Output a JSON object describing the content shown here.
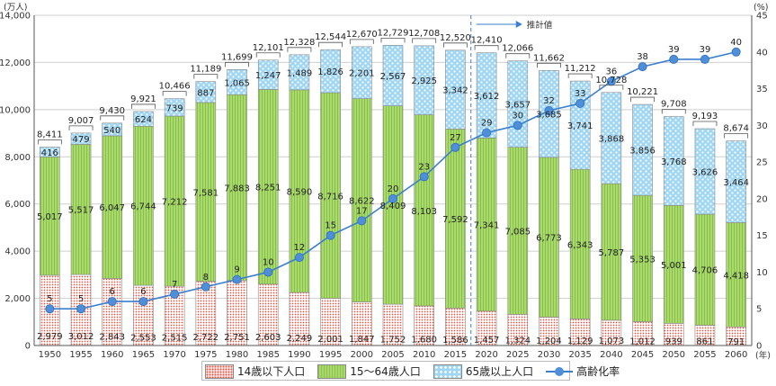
{
  "chart_data": {
    "type": "bar",
    "stacked": true,
    "left_unit": "(万人)",
    "right_unit": "(%)",
    "x_unit": "(年)",
    "projection_label": "推計値",
    "categories": [
      "1950",
      "1955",
      "1960",
      "1965",
      "1970",
      "1975",
      "1980",
      "1985",
      "1990",
      "1995",
      "2000",
      "2005",
      "2010",
      "2015",
      "2020",
      "2025",
      "2030",
      "2035",
      "2040",
      "2045",
      "2050",
      "2055",
      "2060"
    ],
    "left_ticks": [
      "0",
      "2,000",
      "4,000",
      "6,000",
      "8,000",
      "10,000",
      "12,000",
      "14,000"
    ],
    "right_ticks": [
      "0",
      "5",
      "10",
      "15",
      "20",
      "25",
      "30",
      "35",
      "40",
      "45"
    ],
    "ylim": [
      0,
      14000
    ],
    "y2lim": [
      0,
      45
    ],
    "series": [
      {
        "name": "14歳以下人口",
        "values": [
          2979,
          3012,
          2843,
          2553,
          2515,
          2722,
          2751,
          2603,
          2249,
          2001,
          1847,
          1752,
          1680,
          1586,
          1457,
          1324,
          1204,
          1129,
          1073,
          1012,
          939,
          861,
          791
        ],
        "labels": [
          "2,979",
          "3,012",
          "2,843",
          "2,553",
          "2,515",
          "2,722",
          "2,751",
          "2,603",
          "2,249",
          "2,001",
          "1,847",
          "1,752",
          "1,680",
          "1,586",
          "1,457",
          "1,324",
          "1,204",
          "1,129",
          "1,073",
          "1,012",
          "939",
          "861",
          "791"
        ]
      },
      {
        "name": "15～64歳人口",
        "values": [
          5017,
          5517,
          6047,
          6744,
          7212,
          7581,
          7883,
          8251,
          8590,
          8716,
          8622,
          8409,
          8103,
          7592,
          7341,
          7085,
          6773,
          6343,
          5787,
          5353,
          5001,
          4706,
          4418
        ],
        "labels": [
          "5,017",
          "5,517",
          "6,047",
          "6,744",
          "7,212",
          "7,581",
          "7,883",
          "8,251",
          "8,590",
          "8,716",
          "8,622",
          "8,409",
          "8,103",
          "7,592",
          "7,341",
          "7,085",
          "6,773",
          "6,343",
          "5,787",
          "5,353",
          "5,001",
          "4,706",
          "4,418"
        ]
      },
      {
        "name": "65歳以上人口",
        "values": [
          416,
          479,
          540,
          624,
          739,
          887,
          1065,
          1247,
          1489,
          1826,
          2201,
          2567,
          2925,
          3342,
          3612,
          3657,
          3685,
          3741,
          3868,
          3856,
          3768,
          3626,
          3464
        ],
        "labels": [
          "416",
          "479",
          "540",
          "624",
          "739",
          "887",
          "1,065",
          "1,247",
          "1,489",
          "1,826",
          "2,201",
          "2,567",
          "2,925",
          "3,342",
          "3,612",
          "3,657",
          "3,685",
          "3,741",
          "3,868",
          "3,856",
          "3,768",
          "3,626",
          "3,464"
        ]
      }
    ],
    "totals": [
      "8,411",
      "9,007",
      "9,430",
      "9,921",
      "10,466",
      "11,189",
      "11,699",
      "12,101",
      "12,328",
      "12,544",
      "12,670",
      "12,729",
      "12,708",
      "12,520",
      "12,410",
      "12,066",
      "11,662",
      "11,212",
      "10,728",
      "10,221",
      "9,708",
      "9,193",
      "8,674"
    ],
    "line": {
      "name": "高齢化率",
      "values": [
        5,
        5,
        6,
        6,
        7,
        8,
        9,
        10,
        12,
        15,
        17,
        20,
        23,
        27,
        29,
        30,
        32,
        33,
        36,
        38,
        39,
        39,
        40
      ],
      "labels": [
        "5",
        "5",
        "6",
        "6",
        "7",
        "8",
        "9",
        "10",
        "12",
        "15",
        "17",
        "20",
        "23",
        "27",
        "29",
        "30",
        "32",
        "33",
        "36",
        "38",
        "39",
        "39",
        "40"
      ]
    },
    "colors": {
      "young": "#e05a4a",
      "work": "#a8d86a",
      "old": "#9fd6f3",
      "line": "#3a7fcf"
    }
  },
  "legend": {
    "young": "14歳以下人口",
    "work": "15～64歳人口",
    "old": "65歳以上人口",
    "rate": "高齢化率"
  }
}
